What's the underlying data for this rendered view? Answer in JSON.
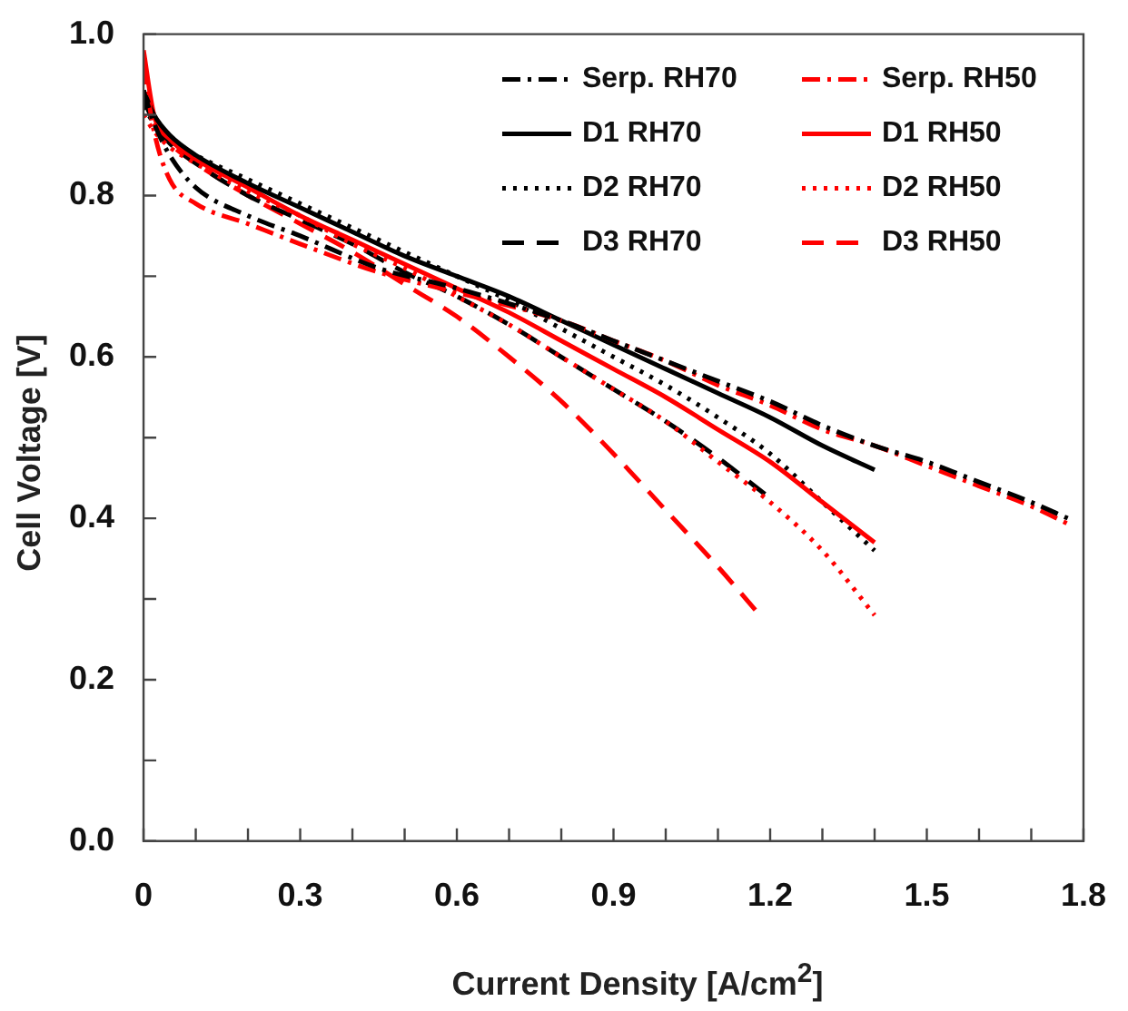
{
  "chart_data": {
    "type": "line",
    "xlabel": "Current Density [A/cm$^{2}$]",
    "ylabel": "Cell Voltage [V]",
    "xlim": [
      0,
      1.8
    ],
    "ylim": [
      0,
      1.0
    ],
    "xticks": [
      0,
      {
        "value": 0.1,
        "label": null
      },
      {
        "value": 0.2,
        "label": null
      },
      0.3,
      {
        "value": 0.4,
        "label": null
      },
      {
        "value": 0.5,
        "label": null
      },
      0.6,
      {
        "value": 0.7,
        "label": null
      },
      {
        "value": 0.8,
        "label": null
      },
      0.9,
      {
        "value": 1.0,
        "label": null
      },
      {
        "value": 1.1,
        "label": null
      },
      1.2,
      {
        "value": 1.3,
        "label": null
      },
      {
        "value": 1.4,
        "label": null
      },
      1.5,
      {
        "value": 1.6,
        "label": null
      },
      {
        "value": 1.7,
        "label": null
      },
      1.8
    ],
    "yticks": [
      {
        "value": 0,
        "label": "0.0"
      },
      {
        "value": 0.1,
        "label": null
      },
      0.2,
      {
        "value": 0.3,
        "label": null
      },
      0.4,
      {
        "value": 0.5,
        "label": null
      },
      0.6,
      {
        "value": 0.7,
        "label": null
      },
      0.8,
      {
        "value": 0.9,
        "label": null
      },
      {
        "value": 1.0,
        "label": "1.0"
      }
    ],
    "grid": false,
    "legend": "top right",
    "marker": "none",
    "series": [
      {
        "name": "Serp. RH70",
        "color": "#000000",
        "line_style": "dashdot",
        "x": [
          0,
          0.02,
          0.05,
          0.1,
          0.2,
          0.3,
          0.45,
          0.6,
          0.8,
          0.9,
          1.0,
          1.1,
          1.2,
          1.3,
          1.4,
          1.5,
          1.6,
          1.7,
          1.77
        ],
        "values": [
          0.93,
          0.89,
          0.85,
          0.81,
          0.775,
          0.75,
          0.71,
          0.685,
          0.645,
          0.62,
          0.595,
          0.57,
          0.545,
          0.515,
          0.49,
          0.47,
          0.445,
          0.42,
          0.4
        ]
      },
      {
        "name": "Serp. RH50",
        "color": "#ff0000",
        "line_style": "dashdot",
        "x": [
          0,
          0.02,
          0.05,
          0.1,
          0.2,
          0.3,
          0.45,
          0.6,
          0.8,
          0.9,
          1.0,
          1.1,
          1.2,
          1.3,
          1.4,
          1.5,
          1.6,
          1.7,
          1.78
        ],
        "values": [
          0.96,
          0.88,
          0.82,
          0.79,
          0.765,
          0.74,
          0.705,
          0.68,
          0.645,
          0.62,
          0.595,
          0.565,
          0.54,
          0.51,
          0.49,
          0.465,
          0.44,
          0.415,
          0.39
        ]
      },
      {
        "name": "D1 RH70",
        "color": "#000000",
        "line_style": "solid",
        "x": [
          0,
          0.02,
          0.05,
          0.1,
          0.2,
          0.3,
          0.4,
          0.5,
          0.6,
          0.7,
          0.8,
          0.9,
          1.0,
          1.1,
          1.2,
          1.3,
          1.4
        ],
        "values": [
          0.93,
          0.9,
          0.875,
          0.85,
          0.815,
          0.785,
          0.755,
          0.725,
          0.7,
          0.675,
          0.645,
          0.615,
          0.585,
          0.555,
          0.525,
          0.49,
          0.46
        ]
      },
      {
        "name": "D1 RH50",
        "color": "#ff0000",
        "line_style": "solid",
        "x": [
          0,
          0.02,
          0.05,
          0.1,
          0.2,
          0.3,
          0.4,
          0.5,
          0.6,
          0.7,
          0.8,
          0.9,
          1.0,
          1.1,
          1.2,
          1.3,
          1.4
        ],
        "values": [
          0.98,
          0.9,
          0.87,
          0.845,
          0.81,
          0.775,
          0.745,
          0.715,
          0.685,
          0.655,
          0.62,
          0.585,
          0.55,
          0.51,
          0.47,
          0.42,
          0.37
        ]
      },
      {
        "name": "D2 RH70",
        "color": "#000000",
        "line_style": "dotted",
        "x": [
          0,
          0.02,
          0.05,
          0.1,
          0.2,
          0.3,
          0.4,
          0.5,
          0.6,
          0.7,
          0.8,
          0.9,
          1.0,
          1.1,
          1.2,
          1.3,
          1.4
        ],
        "values": [
          0.91,
          0.89,
          0.87,
          0.85,
          0.82,
          0.79,
          0.76,
          0.73,
          0.7,
          0.67,
          0.635,
          0.6,
          0.565,
          0.525,
          0.48,
          0.42,
          0.36
        ]
      },
      {
        "name": "D2 RH50",
        "color": "#ff0000",
        "line_style": "dotted",
        "x": [
          0,
          0.02,
          0.05,
          0.1,
          0.2,
          0.3,
          0.4,
          0.5,
          0.6,
          0.7,
          0.8,
          0.9,
          1.0,
          1.1,
          1.2,
          1.3,
          1.4
        ],
        "values": [
          0.9,
          0.88,
          0.86,
          0.84,
          0.805,
          0.775,
          0.74,
          0.71,
          0.675,
          0.64,
          0.6,
          0.56,
          0.52,
          0.47,
          0.42,
          0.36,
          0.28
        ]
      },
      {
        "name": "D3 RH70",
        "color": "#000000",
        "line_style": "dashed",
        "x": [
          0,
          0.02,
          0.05,
          0.1,
          0.2,
          0.3,
          0.4,
          0.5,
          0.6,
          0.7,
          0.8,
          0.9,
          1.0,
          1.1,
          1.19
        ],
        "values": [
          0.92,
          0.89,
          0.865,
          0.84,
          0.8,
          0.77,
          0.74,
          0.705,
          0.675,
          0.64,
          0.6,
          0.56,
          0.52,
          0.475,
          0.43
        ]
      },
      {
        "name": "D3 RH50",
        "color": "#ff0000",
        "line_style": "dashed",
        "x": [
          0,
          0.02,
          0.05,
          0.1,
          0.2,
          0.3,
          0.4,
          0.5,
          0.6,
          0.7,
          0.8,
          0.9,
          1.0,
          1.1,
          1.18
        ],
        "values": [
          0.93,
          0.89,
          0.865,
          0.84,
          0.8,
          0.765,
          0.73,
          0.69,
          0.65,
          0.6,
          0.545,
          0.48,
          0.41,
          0.34,
          0.28
        ]
      }
    ]
  }
}
